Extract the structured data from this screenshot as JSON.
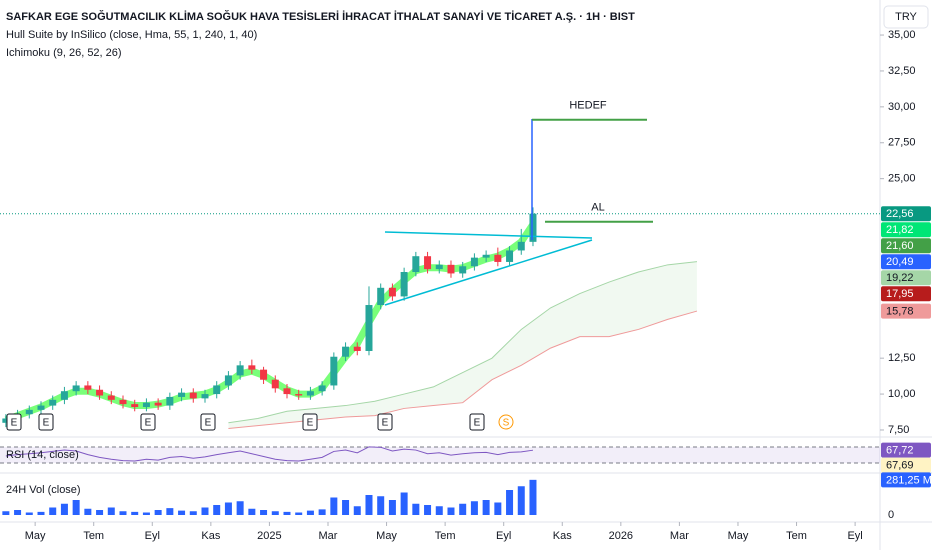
{
  "header": {
    "title": "SAFKAR EGE SOĞUTMACILIK KLİMA SOĞUK HAVA TESİSLERİ İHRACAT İTHALAT SANAYİ VE TİCARET A.Ş. · 1H · BIST",
    "indicators": [
      "Hull Suite by InSilico (close, Hma, 55, 1, 240, 1, 40)",
      "Ichimoku (9, 26, 52, 26)"
    ],
    "currency": "TRY"
  },
  "chart_data": {
    "type": "candlestick",
    "x": [
      -1,
      -0.6,
      -0.2,
      0.2,
      0.6,
      1,
      1.4,
      1.8,
      2.2,
      2.6,
      3,
      3.4,
      3.8,
      4.2,
      4.6,
      5,
      5.4,
      5.8,
      6.2,
      6.6,
      7,
      7.4,
      7.8,
      8.2,
      8.6,
      9,
      9.4,
      9.8,
      10.2,
      10.6,
      11,
      11.4,
      11.8,
      12.2,
      12.6,
      13,
      13.4,
      13.8,
      14.2,
      14.6,
      15,
      15.4,
      15.8,
      16.2,
      16.6,
      17
    ],
    "open": [
      8.0,
      8.3,
      8.6,
      8.9,
      9.2,
      9.6,
      10.2,
      10.6,
      10.3,
      9.9,
      9.6,
      9.3,
      9.1,
      9.4,
      9.2,
      9.8,
      10.1,
      9.7,
      10.0,
      10.6,
      11.3,
      12.0,
      11.7,
      11.0,
      10.4,
      10.0,
      9.9,
      10.2,
      10.6,
      12.6,
      13.3,
      13.0,
      16.2,
      17.4,
      16.8,
      18.5,
      19.6,
      18.7,
      19.0,
      18.4,
      18.9,
      19.5,
      19.7,
      19.2,
      20.0,
      20.6
    ],
    "high": [
      8.6,
      8.9,
      9.2,
      9.5,
      9.9,
      10.5,
      10.9,
      10.9,
      10.6,
      10.2,
      9.9,
      9.6,
      9.7,
      9.7,
      10.1,
      10.4,
      10.4,
      10.3,
      10.9,
      11.6,
      12.3,
      12.4,
      11.9,
      11.3,
      10.7,
      10.3,
      10.5,
      10.9,
      12.9,
      13.6,
      13.6,
      17.5,
      17.7,
      17.7,
      18.8,
      19.9,
      19.9,
      19.3,
      19.3,
      19.2,
      19.8,
      20.0,
      20.2,
      20.3,
      21.5,
      23.0
    ],
    "low": [
      7.7,
      8.0,
      8.3,
      8.6,
      8.9,
      9.3,
      9.9,
      10.0,
      9.6,
      9.3,
      9.0,
      8.8,
      8.8,
      8.9,
      8.9,
      9.5,
      9.4,
      9.4,
      9.7,
      10.3,
      11.0,
      11.4,
      10.7,
      10.1,
      9.7,
      9.6,
      9.6,
      9.9,
      10.3,
      12.3,
      12.7,
      12.7,
      15.9,
      16.5,
      16.5,
      18.2,
      18.4,
      18.4,
      18.1,
      18.1,
      18.6,
      19.2,
      18.9,
      18.9,
      19.7,
      20.3
    ],
    "close": [
      8.3,
      8.6,
      8.9,
      9.2,
      9.6,
      10.2,
      10.6,
      10.3,
      9.9,
      9.6,
      9.3,
      9.1,
      9.4,
      9.2,
      9.8,
      10.1,
      9.7,
      10.0,
      10.6,
      11.3,
      12.0,
      11.7,
      11.0,
      10.4,
      10.0,
      9.9,
      10.2,
      10.6,
      12.6,
      13.3,
      13.0,
      16.2,
      17.4,
      16.8,
      18.5,
      19.6,
      18.7,
      19.0,
      18.4,
      18.9,
      19.5,
      19.7,
      19.2,
      20.0,
      20.6,
      22.56
    ],
    "up_color": "#26a69a",
    "down_color": "#f23645",
    "hull": [
      8.2,
      8.5,
      8.8,
      9.1,
      9.5,
      9.9,
      10.2,
      10.2,
      10.0,
      9.7,
      9.4,
      9.2,
      9.2,
      9.3,
      9.5,
      9.8,
      9.9,
      10.0,
      10.3,
      10.8,
      11.4,
      11.6,
      11.3,
      10.8,
      10.3,
      10.0,
      10.0,
      10.4,
      11.5,
      12.6,
      13.5,
      15.0,
      16.4,
      17.2,
      17.9,
      18.6,
      18.8,
      18.8,
      18.7,
      18.8,
      19.1,
      19.4,
      19.6,
      20.0,
      20.6,
      21.82
    ],
    "hull_color": "#4cff4c",
    "cloud": {
      "x": [
        6.6,
        7.6,
        8.6,
        9.6,
        10.6,
        11.6,
        12.6,
        13.6,
        14.6,
        15.6,
        16.6,
        17.6,
        18.6,
        19.6,
        20.6,
        21.6,
        22.6
      ],
      "span_a": [
        8.0,
        8.3,
        8.8,
        9.0,
        9.2,
        9.5,
        10.0,
        10.5,
        11.5,
        12.5,
        14.5,
        16.0,
        17.0,
        17.8,
        18.5,
        19.0,
        19.22
      ],
      "span_b": [
        7.6,
        7.8,
        8.0,
        8.2,
        8.4,
        8.5,
        9.0,
        9.2,
        9.4,
        11.0,
        12.0,
        13.2,
        14.0,
        14.0,
        14.5,
        15.2,
        15.78
      ]
    },
    "xlim": [
      -1.2,
      28.85
    ],
    "xticks": [
      {
        "value": 0,
        "label": "May"
      },
      {
        "value": 2,
        "label": "Tem"
      },
      {
        "value": 4,
        "label": "Eyl"
      },
      {
        "value": 6,
        "label": "Kas"
      },
      {
        "value": 8,
        "label": "2025"
      },
      {
        "value": 10,
        "label": "Mar"
      },
      {
        "value": 12,
        "label": "May"
      },
      {
        "value": 14,
        "label": "Tem"
      },
      {
        "value": 16,
        "label": "Eyl"
      },
      {
        "value": 18,
        "label": "Kas"
      },
      {
        "value": 20,
        "label": "2026"
      },
      {
        "value": 22,
        "label": "Mar"
      },
      {
        "value": 24,
        "label": "May"
      },
      {
        "value": 26,
        "label": "Tem"
      },
      {
        "value": 28,
        "label": "Eyl"
      }
    ],
    "ylim": [
      7.15,
      37.44
    ],
    "yticks": [
      {
        "value": 35,
        "label": "35,00"
      },
      {
        "value": 32.5,
        "label": "32,50"
      },
      {
        "value": 30,
        "label": "30,00"
      },
      {
        "value": 27.5,
        "label": "27,50"
      },
      {
        "value": 25,
        "label": "25,00"
      },
      {
        "value": 12.5,
        "label": "12,50"
      },
      {
        "value": 10,
        "label": "10,00"
      },
      {
        "value": 7.5,
        "label": "7,50"
      }
    ],
    "price_tags": [
      {
        "value": 22.56,
        "label": "22,56",
        "color": "#089981"
      },
      {
        "value": 21.82,
        "label": "21,82",
        "color": "#00e676"
      },
      {
        "value": 21.6,
        "label": "21,60",
        "color": "#43a047"
      },
      {
        "value": 20.49,
        "label": "20,49",
        "color": "#2962ff"
      },
      {
        "value": 19.22,
        "label": "19,22",
        "color": "#a5d6a7"
      },
      {
        "value": 17.95,
        "label": "17,95",
        "color": "#b71c1c"
      },
      {
        "value": 15.78,
        "label": "15,78",
        "color": "#ef9a9a"
      }
    ],
    "annotations": [
      {
        "label": "HEDEF",
        "value": 29.1
      },
      {
        "label": "AL",
        "value": 22.0
      }
    ],
    "events": [
      "E",
      "E",
      "E",
      "E",
      "E",
      "E",
      "E",
      "S"
    ],
    "rsi": {
      "title": "RSI (14, close)",
      "color": "#7e57c2",
      "ylim": [
        20,
        90
      ],
      "values": [
        55,
        58,
        60,
        62,
        65,
        68,
        66,
        58,
        52,
        48,
        45,
        44,
        48,
        46,
        52,
        54,
        50,
        53,
        58,
        62,
        66,
        60,
        54,
        48,
        45,
        44,
        48,
        52,
        65,
        68,
        62,
        75,
        74,
        66,
        70,
        68,
        60,
        62,
        57,
        60,
        62,
        63,
        58,
        63,
        64,
        67.72
      ],
      "tags": [
        {
          "value": 67.72,
          "label": "67,72",
          "color": "#7e57c2"
        },
        {
          "value": 67.69,
          "label": "67,69",
          "color": "#fff3c4"
        }
      ]
    },
    "volume": {
      "title": "24H Vol (close)",
      "color": "#2962ff",
      "ylim": [
        0,
        300
      ],
      "values": [
        30,
        40,
        20,
        25,
        60,
        90,
        120,
        50,
        40,
        60,
        30,
        25,
        20,
        40,
        55,
        35,
        30,
        60,
        80,
        100,
        110,
        50,
        40,
        30,
        25,
        20,
        35,
        45,
        140,
        120,
        70,
        160,
        150,
        120,
        180,
        90,
        80,
        70,
        60,
        90,
        110,
        120,
        100,
        200,
        230,
        281.25
      ],
      "yticks": [
        0
      ],
      "tags": [
        {
          "value": 281.25,
          "label": "281,25 M",
          "color": "#2962ff"
        }
      ]
    }
  }
}
